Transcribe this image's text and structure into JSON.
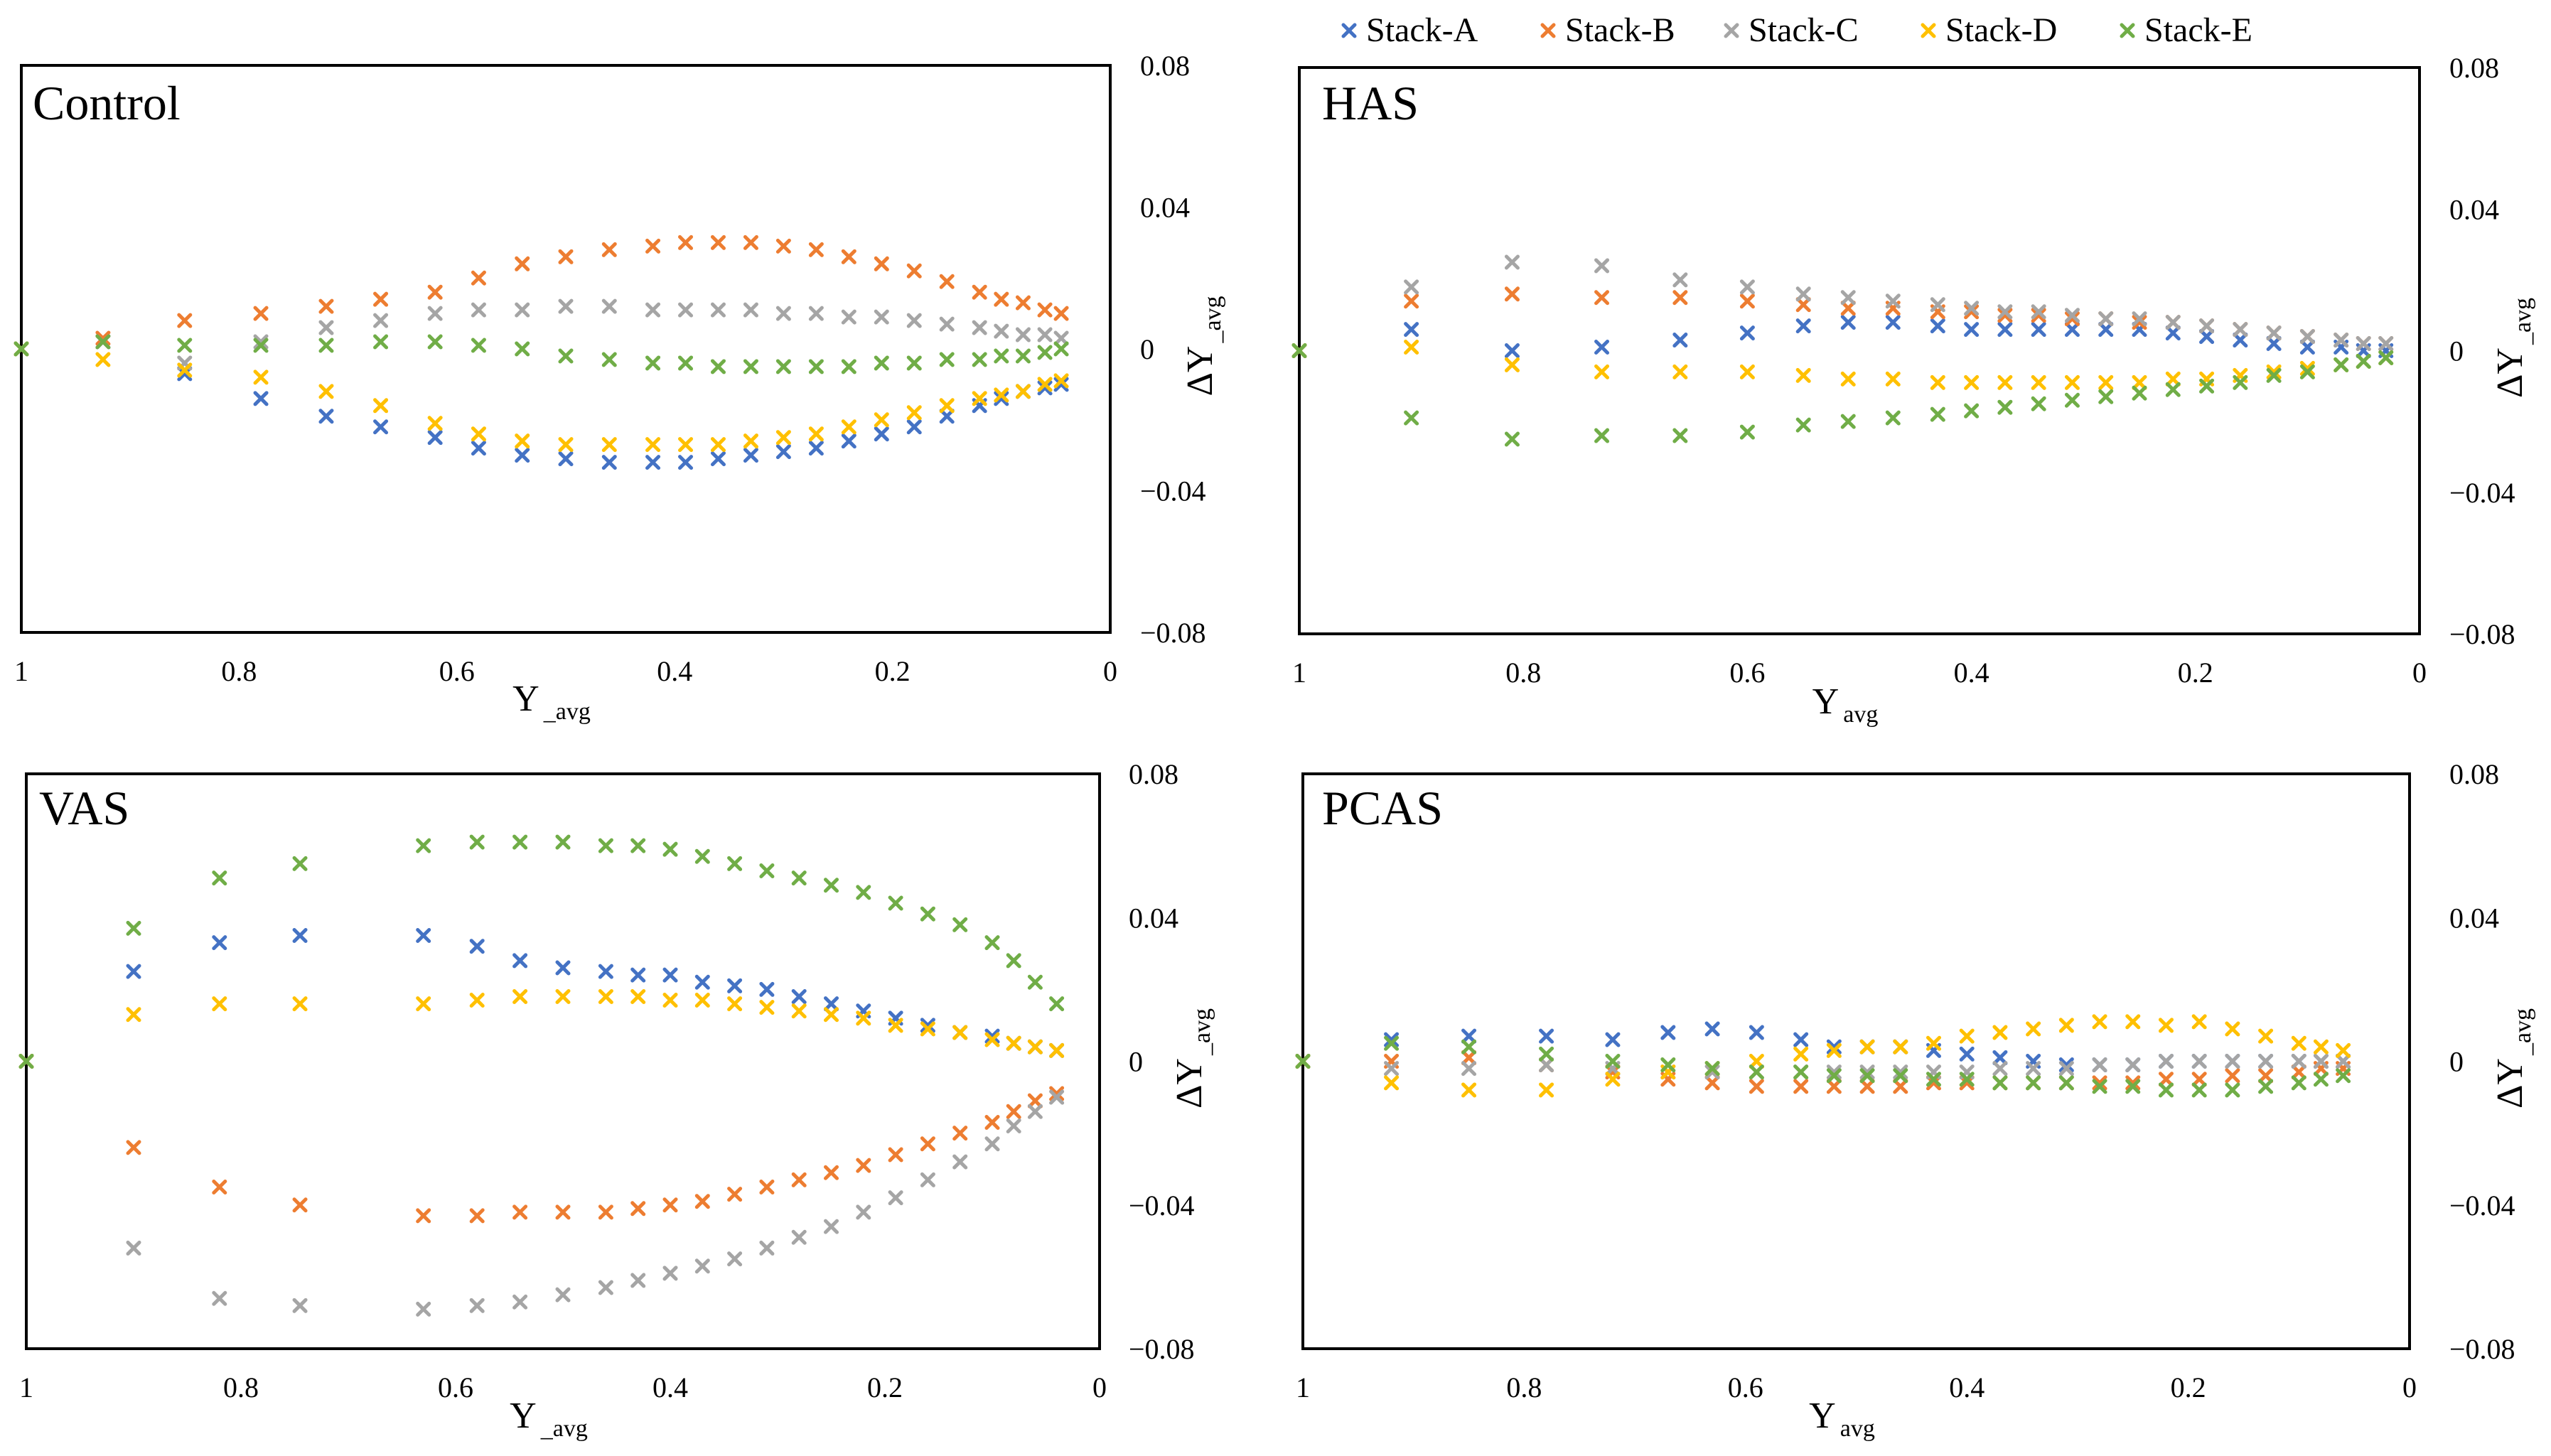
{
  "legend": [
    {
      "name": "Stack-A",
      "color": "#4472C4"
    },
    {
      "name": "Stack-B",
      "color": "#ED7D31"
    },
    {
      "name": "Stack-C",
      "color": "#A5A5A5"
    },
    {
      "name": "Stack-D",
      "color": "#FFC000"
    },
    {
      "name": "Stack-E",
      "color": "#70AD47"
    }
  ],
  "marker": "x-cross",
  "chart_data": [
    {
      "type": "scatter",
      "title": "Control",
      "xlabel": "Y",
      "xlabel_sub": "_avg",
      "ylabel": "ΔY",
      "ylabel_sub": "_avg",
      "xlim": [
        1,
        0
      ],
      "ylim": [
        -0.08,
        0.08
      ],
      "xticks": [
        "1",
        "0.8",
        "0.6",
        "0.4",
        "0.2",
        "0"
      ],
      "yticks": [
        "0.08",
        "0.04",
        "0",
        "−0.04",
        "−0.08"
      ],
      "x": [
        1,
        0.925,
        0.85,
        0.78,
        0.72,
        0.67,
        0.62,
        0.58,
        0.54,
        0.5,
        0.46,
        0.42,
        0.39,
        0.36,
        0.33,
        0.3,
        0.27,
        0.24,
        0.21,
        0.18,
        0.15,
        0.12,
        0.1,
        0.08,
        0.06,
        0.045
      ],
      "series": [
        {
          "name": "Stack-A",
          "values": [
            0,
            0.002,
            -0.007,
            -0.014,
            -0.019,
            -0.022,
            -0.025,
            -0.028,
            -0.03,
            -0.031,
            -0.032,
            -0.032,
            -0.032,
            -0.031,
            -0.03,
            -0.029,
            -0.028,
            -0.026,
            -0.024,
            -0.022,
            -0.019,
            -0.016,
            -0.014,
            -0.012,
            -0.011,
            -0.01
          ]
        },
        {
          "name": "Stack-B",
          "values": [
            0,
            0.003,
            0.008,
            0.01,
            0.012,
            0.014,
            0.016,
            0.02,
            0.024,
            0.026,
            0.028,
            0.029,
            0.03,
            0.03,
            0.03,
            0.029,
            0.028,
            0.026,
            0.024,
            0.022,
            0.019,
            0.016,
            0.014,
            0.013,
            0.011,
            0.01
          ]
        },
        {
          "name": "Stack-C",
          "values": [
            0,
            0.002,
            -0.004,
            0.002,
            0.006,
            0.008,
            0.01,
            0.011,
            0.011,
            0.012,
            0.012,
            0.011,
            0.011,
            0.011,
            0.011,
            0.01,
            0.01,
            0.009,
            0.009,
            0.008,
            0.007,
            0.006,
            0.005,
            0.004,
            0.004,
            0.003
          ]
        },
        {
          "name": "Stack-D",
          "values": [
            0,
            -0.003,
            -0.006,
            -0.008,
            -0.012,
            -0.016,
            -0.021,
            -0.024,
            -0.026,
            -0.027,
            -0.027,
            -0.027,
            -0.027,
            -0.027,
            -0.026,
            -0.025,
            -0.024,
            -0.022,
            -0.02,
            -0.018,
            -0.016,
            -0.014,
            -0.013,
            -0.012,
            -0.01,
            -0.009
          ]
        },
        {
          "name": "Stack-E",
          "values": [
            0,
            0.002,
            0.001,
            0.001,
            0.001,
            0.002,
            0.002,
            0.001,
            0,
            -0.002,
            -0.003,
            -0.004,
            -0.004,
            -0.005,
            -0.005,
            -0.005,
            -0.005,
            -0.005,
            -0.004,
            -0.004,
            -0.003,
            -0.003,
            -0.002,
            -0.002,
            -0.001,
            0
          ]
        }
      ]
    },
    {
      "type": "scatter",
      "title": "HAS",
      "xlabel": "Y",
      "xlabel_sub": "avg",
      "ylabel": "ΔY",
      "ylabel_sub": "_avg",
      "xlim": [
        1,
        0
      ],
      "ylim": [
        -0.08,
        0.08
      ],
      "xticks": [
        "1",
        "0.8",
        "0.6",
        "0.4",
        "0.2",
        "0"
      ],
      "yticks": [
        "0.08",
        "0.04",
        "0",
        "−0.04",
        "−0.08"
      ],
      "x": [
        1,
        0.9,
        0.81,
        0.73,
        0.66,
        0.6,
        0.55,
        0.51,
        0.47,
        0.43,
        0.4,
        0.37,
        0.34,
        0.31,
        0.28,
        0.25,
        0.22,
        0.19,
        0.16,
        0.13,
        0.1,
        0.07,
        0.05,
        0.03
      ],
      "series": [
        {
          "name": "Stack-A",
          "values": [
            0,
            0.006,
            0,
            0.001,
            0.003,
            0.005,
            0.007,
            0.008,
            0.008,
            0.007,
            0.006,
            0.006,
            0.006,
            0.006,
            0.006,
            0.006,
            0.005,
            0.004,
            0.003,
            0.002,
            0.001,
            0.001,
            0,
            0
          ]
        },
        {
          "name": "Stack-B",
          "values": [
            0,
            0.014,
            0.016,
            0.015,
            0.015,
            0.014,
            0.013,
            0.012,
            0.012,
            0.011,
            0.011,
            0.01,
            0.01,
            0.009,
            0.009,
            0.008,
            0.008,
            0.007,
            0.006,
            0.005,
            0.004,
            0.003,
            0.002,
            0.002
          ]
        },
        {
          "name": "Stack-C",
          "values": [
            0,
            0.018,
            0.025,
            0.024,
            0.02,
            0.018,
            0.016,
            0.015,
            0.014,
            0.013,
            0.012,
            0.011,
            0.011,
            0.01,
            0.009,
            0.009,
            0.008,
            0.007,
            0.006,
            0.005,
            0.004,
            0.003,
            0.002,
            0.002
          ]
        },
        {
          "name": "Stack-D",
          "values": [
            0,
            0.001,
            -0.004,
            -0.006,
            -0.006,
            -0.006,
            -0.007,
            -0.008,
            -0.008,
            -0.009,
            -0.009,
            -0.009,
            -0.009,
            -0.009,
            -0.009,
            -0.009,
            -0.008,
            -0.008,
            -0.007,
            -0.006,
            -0.005,
            -0.004,
            -0.003,
            -0.002
          ]
        },
        {
          "name": "Stack-E",
          "values": [
            0,
            -0.019,
            -0.025,
            -0.024,
            -0.024,
            -0.023,
            -0.021,
            -0.02,
            -0.019,
            -0.018,
            -0.017,
            -0.016,
            -0.015,
            -0.014,
            -0.013,
            -0.012,
            -0.011,
            -0.01,
            -0.009,
            -0.007,
            -0.006,
            -0.004,
            -0.003,
            -0.002
          ]
        }
      ]
    },
    {
      "type": "scatter",
      "title": "VAS",
      "xlabel": "Y",
      "xlabel_sub": "_avg",
      "ylabel": "ΔY",
      "ylabel_sub": "_avg",
      "xlim": [
        1,
        0
      ],
      "ylim": [
        -0.08,
        0.08
      ],
      "xticks": [
        "1",
        "0.8",
        "0.6",
        "0.4",
        "0.2",
        "0"
      ],
      "yticks": [
        "0.08",
        "0.04",
        "0",
        "−0.04",
        "−0.08"
      ],
      "x": [
        1,
        0.9,
        0.82,
        0.745,
        0.63,
        0.58,
        0.54,
        0.5,
        0.46,
        0.43,
        0.4,
        0.37,
        0.34,
        0.31,
        0.28,
        0.25,
        0.22,
        0.19,
        0.16,
        0.13,
        0.1,
        0.08,
        0.06,
        0.04
      ],
      "series": [
        {
          "name": "Stack-A",
          "values": [
            0,
            0.025,
            0.033,
            0.035,
            0.035,
            0.032,
            0.028,
            0.026,
            0.025,
            0.024,
            0.024,
            0.022,
            0.021,
            0.02,
            0.018,
            0.016,
            0.014,
            0.012,
            0.01,
            0.008,
            0.007,
            0.005,
            0.004,
            0.003
          ]
        },
        {
          "name": "Stack-B",
          "values": [
            0,
            -0.024,
            -0.035,
            -0.04,
            -0.043,
            -0.043,
            -0.042,
            -0.042,
            -0.042,
            -0.041,
            -0.04,
            -0.039,
            -0.037,
            -0.035,
            -0.033,
            -0.031,
            -0.029,
            -0.026,
            -0.023,
            -0.02,
            -0.017,
            -0.014,
            -0.011,
            -0.009
          ]
        },
        {
          "name": "Stack-C",
          "values": [
            0,
            -0.052,
            -0.066,
            -0.068,
            -0.069,
            -0.068,
            -0.067,
            -0.065,
            -0.063,
            -0.061,
            -0.059,
            -0.057,
            -0.055,
            -0.052,
            -0.049,
            -0.046,
            -0.042,
            -0.038,
            -0.033,
            -0.028,
            -0.023,
            -0.018,
            -0.014,
            -0.01
          ]
        },
        {
          "name": "Stack-D",
          "values": [
            0,
            0.013,
            0.016,
            0.016,
            0.016,
            0.017,
            0.018,
            0.018,
            0.018,
            0.018,
            0.017,
            0.017,
            0.016,
            0.015,
            0.014,
            0.013,
            0.012,
            0.01,
            0.009,
            0.008,
            0.006,
            0.005,
            0.004,
            0.003
          ]
        },
        {
          "name": "Stack-E",
          "values": [
            0,
            0.037,
            0.051,
            0.055,
            0.06,
            0.061,
            0.061,
            0.061,
            0.06,
            0.06,
            0.059,
            0.057,
            0.055,
            0.053,
            0.051,
            0.049,
            0.047,
            0.044,
            0.041,
            0.038,
            0.033,
            0.028,
            0.022,
            0.016
          ]
        }
      ]
    },
    {
      "type": "scatter",
      "title": "PCAS",
      "xlabel": "Y",
      "xlabel_sub": "avg",
      "ylabel": "ΔY",
      "ylabel_sub": "_avg",
      "xlim": [
        1,
        0
      ],
      "ylim": [
        -0.08,
        0.08
      ],
      "xticks": [
        "1",
        "0.8",
        "0.6",
        "0.4",
        "0.2",
        "0"
      ],
      "yticks": [
        "0.08",
        "0.04",
        "0",
        "−0.04",
        "−0.08"
      ],
      "x": [
        1,
        0.92,
        0.85,
        0.78,
        0.72,
        0.67,
        0.63,
        0.59,
        0.55,
        0.52,
        0.49,
        0.46,
        0.43,
        0.4,
        0.37,
        0.34,
        0.31,
        0.28,
        0.25,
        0.22,
        0.19,
        0.16,
        0.13,
        0.1,
        0.08,
        0.06
      ],
      "series": [
        {
          "name": "Stack-A",
          "values": [
            0,
            0.006,
            0.007,
            0.007,
            0.006,
            0.008,
            0.009,
            0.008,
            0.006,
            0.004,
            0.004,
            0.004,
            0.003,
            0.002,
            0.001,
            0,
            -0.001,
            -0.001,
            -0.001,
            0,
            0,
            0,
            0,
            0,
            0,
            0
          ]
        },
        {
          "name": "Stack-B",
          "values": [
            0,
            0,
            0.001,
            -0.001,
            -0.003,
            -0.005,
            -0.006,
            -0.007,
            -0.007,
            -0.007,
            -0.007,
            -0.007,
            -0.006,
            -0.006,
            -0.006,
            -0.006,
            -0.006,
            -0.006,
            -0.006,
            -0.005,
            -0.005,
            -0.004,
            -0.004,
            -0.003,
            -0.002,
            -0.002
          ]
        },
        {
          "name": "Stack-C",
          "values": [
            0,
            -0.002,
            -0.002,
            -0.001,
            -0.002,
            -0.003,
            -0.003,
            -0.003,
            -0.003,
            -0.003,
            -0.003,
            -0.003,
            -0.003,
            -0.003,
            -0.002,
            -0.002,
            -0.002,
            -0.001,
            -0.001,
            0,
            0,
            0,
            0,
            0,
            0,
            0
          ]
        },
        {
          "name": "Stack-D",
          "values": [
            0,
            -0.006,
            -0.008,
            -0.008,
            -0.005,
            -0.003,
            -0.002,
            0,
            0.002,
            0.003,
            0.004,
            0.004,
            0.005,
            0.007,
            0.008,
            0.009,
            0.01,
            0.011,
            0.011,
            0.01,
            0.011,
            0.009,
            0.007,
            0.005,
            0.004,
            0.003
          ]
        },
        {
          "name": "Stack-E",
          "values": [
            0,
            0.005,
            0.004,
            0.002,
            0,
            -0.001,
            -0.002,
            -0.003,
            -0.003,
            -0.004,
            -0.004,
            -0.004,
            -0.005,
            -0.005,
            -0.006,
            -0.006,
            -0.006,
            -0.007,
            -0.007,
            -0.008,
            -0.008,
            -0.008,
            -0.007,
            -0.006,
            -0.005,
            -0.004
          ]
        }
      ]
    }
  ]
}
